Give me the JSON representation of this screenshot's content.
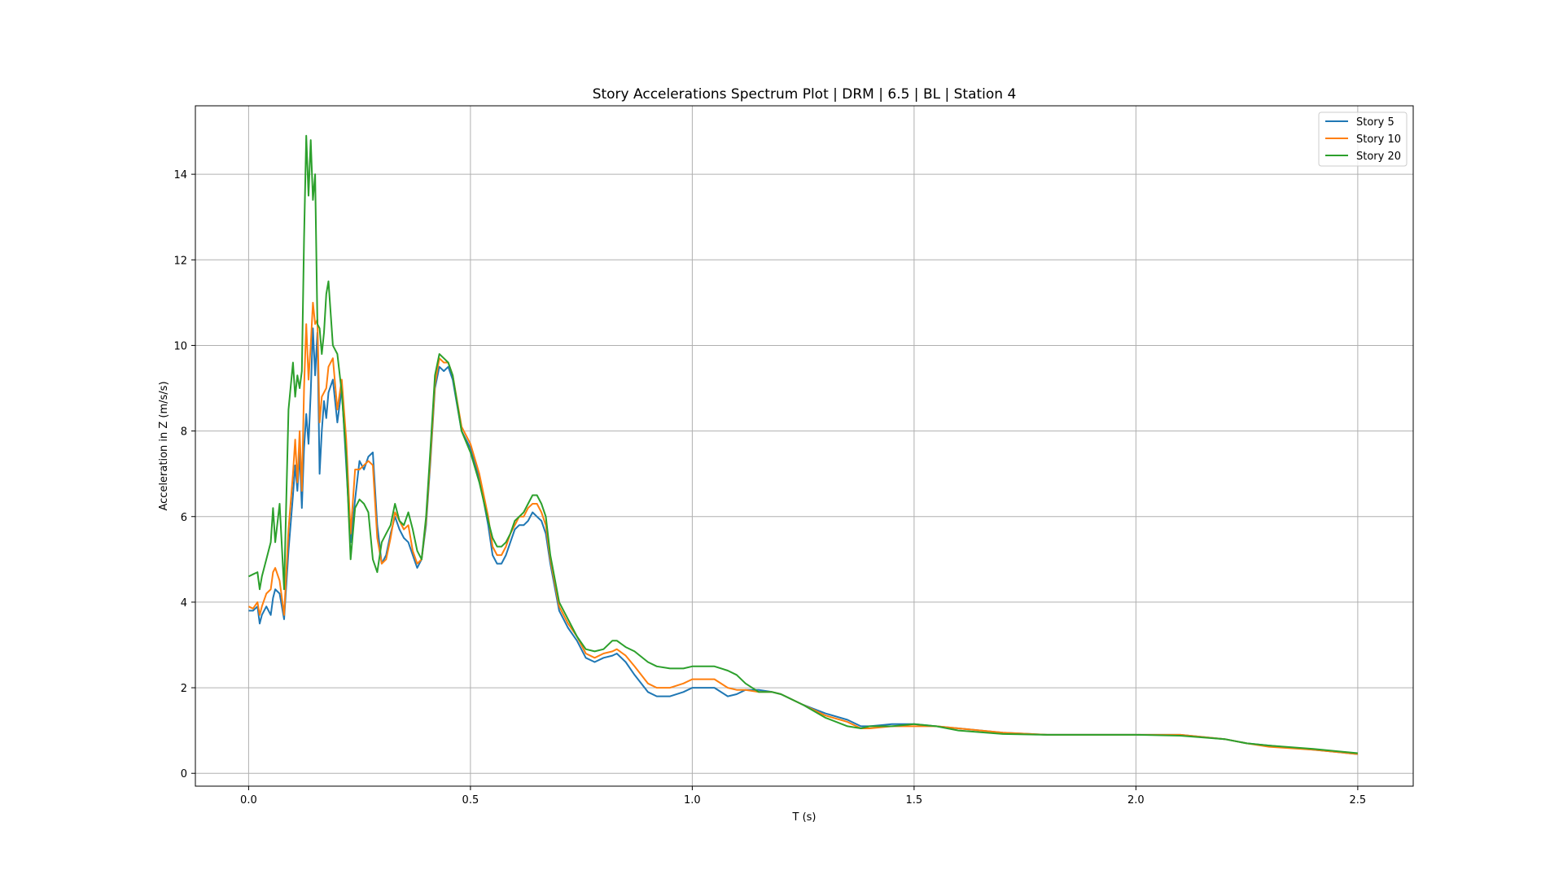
{
  "chart_data": {
    "type": "line",
    "title": "Story Accelerations Spectrum Plot | DRM |  6.5 | BL | Station 4",
    "xlabel": "T (s)",
    "ylabel": "Acceleration in Z (m/s/s)",
    "xlim": [
      -0.12,
      2.625
    ],
    "ylim": [
      -0.3,
      15.6
    ],
    "xticks": [
      0.0,
      0.5,
      1.0,
      1.5,
      2.0,
      2.5
    ],
    "xtick_labels": [
      "0.0",
      "0.5",
      "1.0",
      "1.5",
      "2.0",
      "2.5"
    ],
    "yticks": [
      0,
      2,
      4,
      6,
      8,
      10,
      12,
      14
    ],
    "ytick_labels": [
      "0",
      "2",
      "4",
      "6",
      "8",
      "10",
      "12",
      "14"
    ],
    "grid": true,
    "legend_position": "top-right",
    "series": [
      {
        "name": "Story 5",
        "color": "#1f77b4",
        "x": [
          0.0,
          0.01,
          0.02,
          0.025,
          0.03,
          0.04,
          0.05,
          0.055,
          0.06,
          0.07,
          0.08,
          0.09,
          0.1,
          0.105,
          0.11,
          0.115,
          0.12,
          0.125,
          0.13,
          0.135,
          0.14,
          0.145,
          0.15,
          0.155,
          0.16,
          0.165,
          0.17,
          0.175,
          0.18,
          0.19,
          0.2,
          0.21,
          0.22,
          0.23,
          0.24,
          0.25,
          0.26,
          0.27,
          0.28,
          0.29,
          0.3,
          0.31,
          0.32,
          0.33,
          0.34,
          0.35,
          0.36,
          0.37,
          0.38,
          0.39,
          0.4,
          0.41,
          0.42,
          0.43,
          0.44,
          0.45,
          0.46,
          0.48,
          0.5,
          0.52,
          0.54,
          0.55,
          0.56,
          0.57,
          0.58,
          0.59,
          0.6,
          0.61,
          0.62,
          0.63,
          0.64,
          0.65,
          0.66,
          0.67,
          0.68,
          0.7,
          0.72,
          0.74,
          0.76,
          0.78,
          0.8,
          0.82,
          0.83,
          0.85,
          0.87,
          0.9,
          0.92,
          0.95,
          0.98,
          1.0,
          1.02,
          1.05,
          1.08,
          1.1,
          1.12,
          1.15,
          1.18,
          1.2,
          1.25,
          1.3,
          1.35,
          1.38,
          1.4,
          1.45,
          1.5,
          1.55,
          1.6,
          1.7,
          1.8,
          1.9,
          2.0,
          2.1,
          2.2,
          2.25,
          2.3,
          2.4,
          2.5
        ],
        "y": [
          3.8,
          3.8,
          3.9,
          3.5,
          3.7,
          3.9,
          3.7,
          4.1,
          4.3,
          4.2,
          3.6,
          5.2,
          6.5,
          7.2,
          6.6,
          7.5,
          6.2,
          7.6,
          8.4,
          7.7,
          8.9,
          10.4,
          9.3,
          10.3,
          7.0,
          8.0,
          8.7,
          8.3,
          8.9,
          9.2,
          8.2,
          9.0,
          7.2,
          5.4,
          6.4,
          7.3,
          7.1,
          7.4,
          7.5,
          5.8,
          4.9,
          5.1,
          5.6,
          6.0,
          5.7,
          5.5,
          5.4,
          5.1,
          4.8,
          5.0,
          5.8,
          7.3,
          9.0,
          9.5,
          9.4,
          9.5,
          9.2,
          8.0,
          7.6,
          6.9,
          5.8,
          5.1,
          4.9,
          4.9,
          5.1,
          5.4,
          5.7,
          5.8,
          5.8,
          5.9,
          6.1,
          6.0,
          5.9,
          5.6,
          4.9,
          3.8,
          3.4,
          3.1,
          2.7,
          2.6,
          2.7,
          2.75,
          2.8,
          2.6,
          2.3,
          1.9,
          1.8,
          1.8,
          1.9,
          2.0,
          2.0,
          2.0,
          1.8,
          1.85,
          1.95,
          1.95,
          1.9,
          1.85,
          1.6,
          1.4,
          1.25,
          1.1,
          1.1,
          1.15,
          1.15,
          1.1,
          1.05,
          0.95,
          0.9,
          0.9,
          0.9,
          0.9,
          0.8,
          0.7,
          0.65,
          0.55,
          0.45
        ]
      },
      {
        "name": "Story 10",
        "color": "#ff7f0e",
        "x": [
          0.0,
          0.01,
          0.02,
          0.025,
          0.03,
          0.04,
          0.05,
          0.055,
          0.06,
          0.07,
          0.08,
          0.09,
          0.1,
          0.105,
          0.11,
          0.115,
          0.12,
          0.125,
          0.13,
          0.135,
          0.14,
          0.145,
          0.15,
          0.155,
          0.16,
          0.165,
          0.17,
          0.175,
          0.18,
          0.19,
          0.2,
          0.21,
          0.22,
          0.23,
          0.24,
          0.25,
          0.26,
          0.27,
          0.28,
          0.29,
          0.3,
          0.31,
          0.32,
          0.33,
          0.34,
          0.35,
          0.36,
          0.37,
          0.38,
          0.39,
          0.4,
          0.41,
          0.42,
          0.43,
          0.44,
          0.45,
          0.46,
          0.48,
          0.5,
          0.52,
          0.54,
          0.55,
          0.56,
          0.57,
          0.58,
          0.59,
          0.6,
          0.61,
          0.62,
          0.63,
          0.64,
          0.65,
          0.66,
          0.67,
          0.68,
          0.7,
          0.72,
          0.74,
          0.76,
          0.78,
          0.8,
          0.82,
          0.83,
          0.85,
          0.87,
          0.9,
          0.92,
          0.95,
          0.98,
          1.0,
          1.02,
          1.05,
          1.08,
          1.1,
          1.12,
          1.15,
          1.18,
          1.2,
          1.25,
          1.3,
          1.35,
          1.38,
          1.4,
          1.45,
          1.5,
          1.55,
          1.6,
          1.7,
          1.8,
          1.9,
          2.0,
          2.1,
          2.2,
          2.25,
          2.3,
          2.4,
          2.5
        ],
        "y": [
          3.9,
          3.85,
          4.0,
          3.7,
          3.9,
          4.2,
          4.3,
          4.7,
          4.8,
          4.5,
          3.7,
          5.7,
          7.0,
          7.8,
          6.8,
          8.0,
          6.6,
          9.0,
          10.5,
          9.2,
          10.0,
          11.0,
          10.5,
          10.6,
          8.2,
          8.8,
          8.9,
          9.0,
          9.5,
          9.7,
          8.5,
          9.2,
          7.8,
          5.6,
          7.1,
          7.1,
          7.2,
          7.3,
          7.2,
          5.5,
          4.9,
          5.0,
          5.5,
          6.1,
          5.9,
          5.7,
          5.8,
          5.2,
          4.9,
          5.0,
          5.9,
          7.4,
          9.1,
          9.7,
          9.6,
          9.6,
          9.3,
          8.1,
          7.7,
          7.0,
          6.0,
          5.3,
          5.1,
          5.1,
          5.3,
          5.6,
          5.8,
          6.0,
          6.0,
          6.2,
          6.3,
          6.3,
          6.1,
          5.8,
          5.0,
          3.9,
          3.5,
          3.2,
          2.8,
          2.7,
          2.8,
          2.85,
          2.9,
          2.75,
          2.5,
          2.1,
          2.0,
          2.0,
          2.1,
          2.2,
          2.2,
          2.2,
          2.0,
          1.95,
          1.95,
          1.9,
          1.9,
          1.85,
          1.6,
          1.35,
          1.2,
          1.05,
          1.05,
          1.1,
          1.1,
          1.1,
          1.05,
          0.95,
          0.9,
          0.9,
          0.9,
          0.9,
          0.8,
          0.7,
          0.62,
          0.55,
          0.45
        ]
      },
      {
        "name": "Story 20",
        "color": "#2ca02c",
        "x": [
          0.0,
          0.01,
          0.02,
          0.025,
          0.03,
          0.04,
          0.05,
          0.055,
          0.06,
          0.07,
          0.08,
          0.09,
          0.1,
          0.105,
          0.11,
          0.115,
          0.12,
          0.125,
          0.13,
          0.135,
          0.14,
          0.145,
          0.15,
          0.155,
          0.16,
          0.165,
          0.17,
          0.175,
          0.18,
          0.19,
          0.2,
          0.21,
          0.22,
          0.23,
          0.24,
          0.25,
          0.26,
          0.27,
          0.28,
          0.29,
          0.3,
          0.31,
          0.32,
          0.33,
          0.34,
          0.35,
          0.36,
          0.37,
          0.38,
          0.39,
          0.4,
          0.41,
          0.42,
          0.43,
          0.44,
          0.45,
          0.46,
          0.48,
          0.5,
          0.52,
          0.54,
          0.55,
          0.56,
          0.57,
          0.58,
          0.59,
          0.6,
          0.61,
          0.62,
          0.63,
          0.64,
          0.65,
          0.66,
          0.67,
          0.68,
          0.7,
          0.72,
          0.74,
          0.76,
          0.78,
          0.8,
          0.82,
          0.83,
          0.85,
          0.87,
          0.9,
          0.92,
          0.95,
          0.98,
          1.0,
          1.02,
          1.05,
          1.08,
          1.1,
          1.12,
          1.15,
          1.18,
          1.2,
          1.25,
          1.3,
          1.35,
          1.38,
          1.4,
          1.45,
          1.5,
          1.55,
          1.6,
          1.7,
          1.8,
          1.9,
          2.0,
          2.1,
          2.2,
          2.25,
          2.3,
          2.4,
          2.5
        ],
        "y": [
          4.6,
          4.65,
          4.7,
          4.3,
          4.6,
          5.0,
          5.4,
          6.2,
          5.4,
          6.3,
          4.3,
          8.5,
          9.6,
          8.8,
          9.3,
          9.0,
          9.4,
          12.5,
          14.9,
          13.5,
          14.8,
          13.4,
          14.0,
          10.5,
          10.4,
          9.8,
          10.3,
          11.2,
          11.5,
          10.0,
          9.8,
          8.9,
          7.4,
          5.0,
          6.2,
          6.4,
          6.3,
          6.1,
          5.0,
          4.7,
          5.4,
          5.6,
          5.8,
          6.3,
          5.9,
          5.8,
          6.1,
          5.7,
          5.2,
          5.0,
          6.0,
          7.6,
          9.3,
          9.8,
          9.7,
          9.6,
          9.3,
          8.0,
          7.5,
          6.8,
          5.9,
          5.5,
          5.3,
          5.3,
          5.4,
          5.6,
          5.9,
          6.0,
          6.1,
          6.3,
          6.5,
          6.5,
          6.3,
          6.0,
          5.1,
          4.0,
          3.6,
          3.2,
          2.9,
          2.85,
          2.9,
          3.1,
          3.1,
          2.95,
          2.85,
          2.6,
          2.5,
          2.45,
          2.45,
          2.5,
          2.5,
          2.5,
          2.4,
          2.3,
          2.1,
          1.9,
          1.9,
          1.85,
          1.6,
          1.3,
          1.1,
          1.05,
          1.1,
          1.1,
          1.15,
          1.1,
          1.0,
          0.92,
          0.9,
          0.9,
          0.9,
          0.88,
          0.8,
          0.7,
          0.65,
          0.57,
          0.47
        ]
      }
    ]
  }
}
